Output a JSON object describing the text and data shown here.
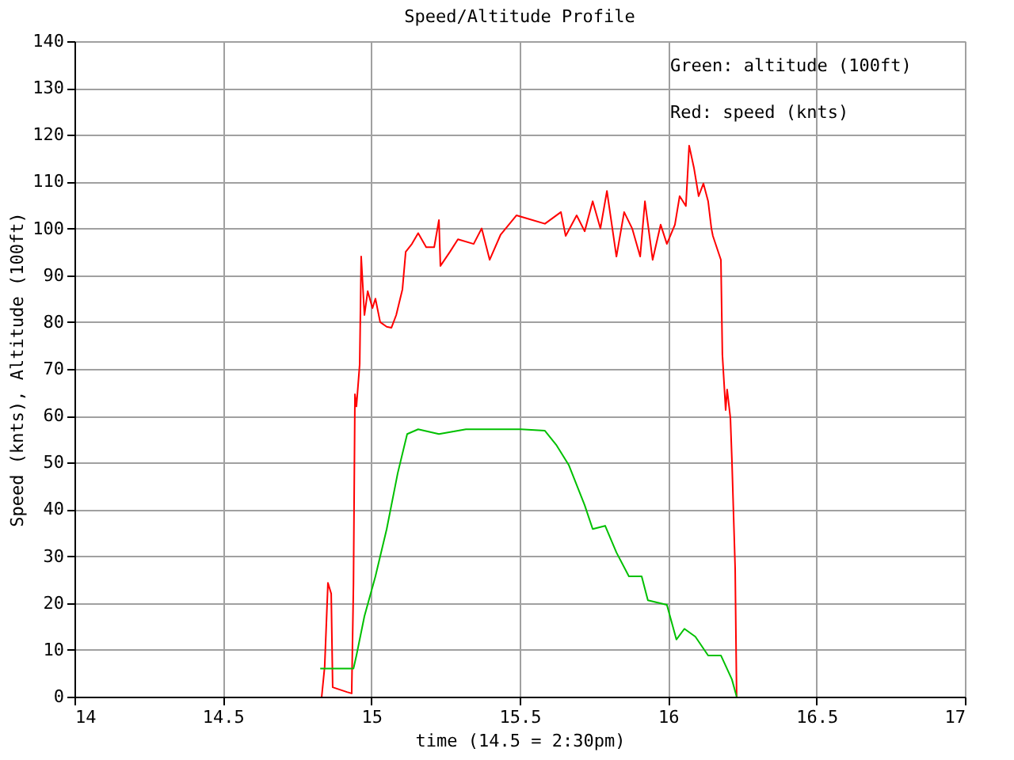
{
  "chart_data": {
    "type": "line",
    "title": "Speed/Altitude Profile",
    "xlabel": "time (14.5 = 2:30pm)",
    "ylabel": "Speed (knts), Altitude (100ft)",
    "xlim": [
      14,
      17
    ],
    "xticks": [
      14,
      14.5,
      15,
      15.5,
      16,
      16.5,
      17
    ],
    "ylim": [
      0,
      140
    ],
    "yticks": [
      0,
      10,
      20,
      30,
      40,
      50,
      60,
      70,
      80,
      90,
      100,
      110,
      120,
      130,
      140
    ],
    "grid": true,
    "marker": "none",
    "line_style": "solid",
    "annotations": [
      "Green: altitude (100ft)",
      "Red:   speed (knts)"
    ],
    "series": [
      {
        "color": "#ff0000",
        "x": [
          14.833,
          14.843,
          14.854,
          14.865,
          14.87,
          14.918,
          14.934,
          14.94,
          14.945,
          14.95,
          14.961,
          14.966,
          14.977,
          14.988,
          15.004,
          15.014,
          15.03,
          15.052,
          15.068,
          15.084,
          15.105,
          15.116,
          15.137,
          15.158,
          15.185,
          15.212,
          15.228,
          15.233,
          15.265,
          15.292,
          15.345,
          15.372,
          15.399,
          15.436,
          15.489,
          15.532,
          15.585,
          15.639,
          15.655,
          15.692,
          15.719,
          15.746,
          15.772,
          15.794,
          15.826,
          15.852,
          15.879,
          15.906,
          15.922,
          15.948,
          15.975,
          15.996,
          16.023,
          16.039,
          16.06,
          16.071,
          16.087,
          16.103,
          16.119,
          16.135,
          16.146,
          16.151,
          16.178,
          16.183,
          16.194,
          16.199,
          16.21,
          16.215,
          16.226,
          16.231
        ],
        "values": [
          0,
          6.4,
          24.3,
          22,
          2,
          1,
          0.7,
          24,
          64.6,
          62,
          71,
          94,
          81.5,
          86.6,
          83,
          85,
          80,
          79,
          78.8,
          81.5,
          87,
          95,
          96.7,
          99,
          96,
          96,
          101.8,
          92,
          95,
          97.7,
          96.7,
          100,
          93.3,
          98.7,
          102.8,
          102,
          101,
          103.5,
          98.4,
          102.8,
          99.4,
          105.8,
          100,
          108,
          94,
          103.5,
          100,
          94,
          105.8,
          93.3,
          100.8,
          96.7,
          100.8,
          106.9,
          104.8,
          117.7,
          113,
          106.9,
          109.6,
          105.8,
          100,
          98.4,
          93.3,
          73,
          61.2,
          65.6,
          59.5,
          50.7,
          27.4,
          0
        ]
      },
      {
        "color": "#00c000",
        "x": [
          14.828,
          14.94,
          14.95,
          14.977,
          15.014,
          15.052,
          15.089,
          15.121,
          15.158,
          15.228,
          15.319,
          15.505,
          15.585,
          15.623,
          15.666,
          15.719,
          15.746,
          15.788,
          15.826,
          15.868,
          15.911,
          15.932,
          15.996,
          16.028,
          16.055,
          16.092,
          16.135,
          16.178,
          16.215,
          16.231
        ],
        "values": [
          6,
          6,
          8.8,
          17.2,
          25.7,
          35.8,
          47.7,
          56.1,
          57.1,
          56.1,
          57.1,
          57.1,
          56.8,
          53.8,
          49.4,
          40.9,
          35.8,
          36.5,
          30.8,
          25.7,
          25.7,
          20.6,
          19.6,
          12.2,
          14.5,
          12.8,
          8.8,
          8.8,
          3.7,
          0
        ]
      }
    ]
  }
}
